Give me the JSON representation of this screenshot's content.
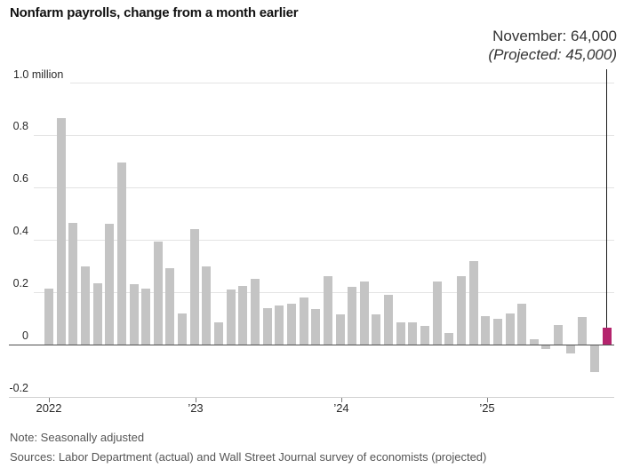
{
  "title": "Nonfarm payrolls, change from a month earlier",
  "annotation": {
    "actual": "November: 64,000",
    "projected": "(Projected: 45,000)"
  },
  "note": "Note: Seasonally adjusted",
  "sources": "Sources: Labor Department (actual) and Wall Street Journal survey of economists (projected)",
  "colors": {
    "bar": "#c4c4c4",
    "highlight": "#b4246d",
    "gridline": "#e3e3e3",
    "zero_line": "#4f4f4f",
    "bottom_axis": "#d2d2d2",
    "callout_line": "#1a1a1a"
  },
  "y_axis": {
    "labels": [
      {
        "text": "1.0 million",
        "value": 1.0
      },
      {
        "text": "0.8",
        "value": 0.8
      },
      {
        "text": "0.6",
        "value": 0.6
      },
      {
        "text": "0.4",
        "value": 0.4
      },
      {
        "text": "0.2",
        "value": 0.2
      },
      {
        "text": "0",
        "value": 0
      },
      {
        "text": "-0.2",
        "value": -0.2
      }
    ]
  },
  "x_axis": {
    "ticks": [
      "2022",
      "’23",
      "’24",
      "’25"
    ]
  },
  "chart_data": {
    "type": "bar",
    "title": "Nonfarm payrolls, change from a month earlier",
    "unit": "millions of jobs, change from a month earlier",
    "ylim": [
      -0.2,
      1.0
    ],
    "ytick_interval": 0.2,
    "grid": "horizontal",
    "legend": "none",
    "highlight_index": 46,
    "highlight_note": "November actual 64,000 vs projected 45,000",
    "x": [
      "Jan 2022",
      "Feb 2022",
      "Mar 2022",
      "Apr 2022",
      "May 2022",
      "Jun 2022",
      "Jul 2022",
      "Aug 2022",
      "Sep 2022",
      "Oct 2022",
      "Nov 2022",
      "Dec 2022",
      "Jan 2023",
      "Feb 2023",
      "Mar 2023",
      "Apr 2023",
      "May 2023",
      "Jun 2023",
      "Jul 2023",
      "Aug 2023",
      "Sep 2023",
      "Oct 2023",
      "Nov 2023",
      "Dec 2023",
      "Jan 2024",
      "Feb 2024",
      "Mar 2024",
      "Apr 2024",
      "May 2024",
      "Jun 2024",
      "Jul 2024",
      "Aug 2024",
      "Sep 2024",
      "Oct 2024",
      "Nov 2024",
      "Dec 2024",
      "Jan 2025",
      "Feb 2025",
      "Mar 2025",
      "Apr 2025",
      "May 2025",
      "Jun 2025",
      "Jul 2025",
      "Aug 2025",
      "Sep 2025",
      "Oct 2025",
      "Nov 2025"
    ],
    "values": [
      0.215,
      0.865,
      0.465,
      0.3,
      0.235,
      0.46,
      0.695,
      0.23,
      0.215,
      0.395,
      0.29,
      0.12,
      0.44,
      0.3,
      0.085,
      0.21,
      0.225,
      0.25,
      0.14,
      0.15,
      0.155,
      0.18,
      0.135,
      0.26,
      0.115,
      0.22,
      0.24,
      0.115,
      0.19,
      0.085,
      0.085,
      0.07,
      0.24,
      0.045,
      0.26,
      0.32,
      0.11,
      0.1,
      0.12,
      0.155,
      0.02,
      -0.015,
      0.075,
      -0.03,
      0.105,
      -0.1,
      0.064
    ]
  }
}
